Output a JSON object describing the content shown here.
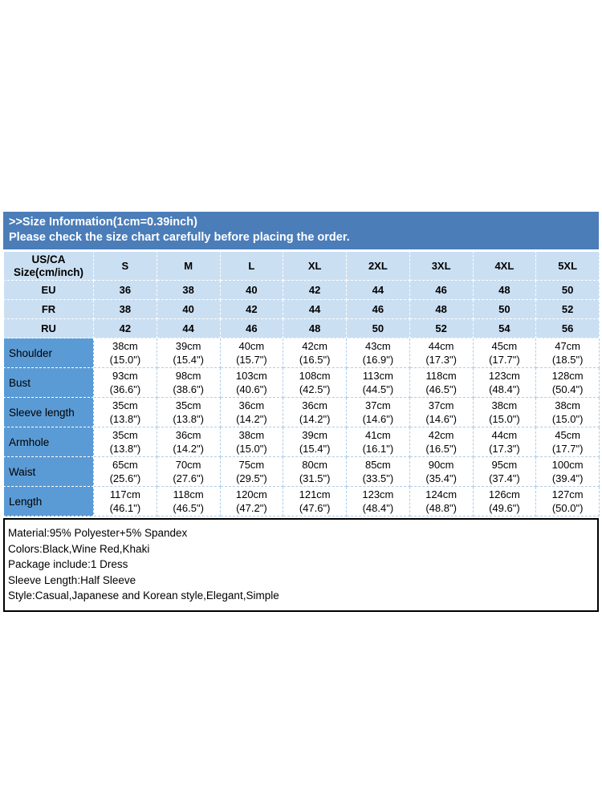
{
  "banner": {
    "title": ">>Size Information(1cm=0.39inch)",
    "subtitle": "Please check the size chart carefully before placing the order."
  },
  "table": {
    "corner_header": "US/CA\nSize(cm/inch)",
    "columns": [
      "S",
      "M",
      "L",
      "XL",
      "2XL",
      "3XL",
      "4XL",
      "5XL"
    ],
    "size_rows": [
      {
        "label": "EU",
        "values": [
          "36",
          "38",
          "40",
          "42",
          "44",
          "46",
          "48",
          "50"
        ]
      },
      {
        "label": "FR",
        "values": [
          "38",
          "40",
          "42",
          "44",
          "46",
          "48",
          "50",
          "52"
        ]
      },
      {
        "label": "RU",
        "values": [
          "42",
          "44",
          "46",
          "48",
          "50",
          "52",
          "54",
          "56"
        ]
      }
    ],
    "measure_rows": [
      {
        "label": "Shoulder",
        "values": [
          "38cm\n(15.0\")",
          "39cm\n(15.4\")",
          "40cm\n(15.7\")",
          "42cm\n(16.5\")",
          "43cm\n(16.9\")",
          "44cm\n(17.3\")",
          "45cm\n(17.7\")",
          "47cm\n(18.5\")"
        ]
      },
      {
        "label": "Bust",
        "values": [
          "93cm\n(36.6\")",
          "98cm\n(38.6\")",
          "103cm\n(40.6\")",
          "108cm\n(42.5\")",
          "113cm\n(44.5\")",
          "118cm\n(46.5\")",
          "123cm\n(48.4\")",
          "128cm\n(50.4\")"
        ]
      },
      {
        "label": "Sleeve length",
        "values": [
          "35cm\n(13.8\")",
          "35cm\n(13.8\")",
          "36cm\n(14.2\")",
          "36cm\n(14.2\")",
          "37cm\n(14.6\")",
          "37cm\n(14.6\")",
          "38cm\n(15.0\")",
          "38cm\n(15.0\")"
        ]
      },
      {
        "label": "Armhole",
        "values": [
          "35cm\n(13.8\")",
          "36cm\n(14.2\")",
          "38cm\n(15.0\")",
          "39cm\n(15.4\")",
          "41cm\n(16.1\")",
          "42cm\n(16.5\")",
          "44cm\n(17.3\")",
          "45cm\n(17.7\")"
        ]
      },
      {
        "label": "Waist",
        "values": [
          "65cm\n(25.6\")",
          "70cm\n(27.6\")",
          "75cm\n(29.5\")",
          "80cm\n(31.5\")",
          "85cm\n(33.5\")",
          "90cm\n(35.4\")",
          "95cm\n(37.4\")",
          "100cm\n(39.4\")"
        ]
      },
      {
        "label": "Length",
        "values": [
          "117cm\n(46.1\")",
          "118cm\n(46.5\")",
          "120cm\n(47.2\")",
          "121cm\n(47.6\")",
          "123cm\n(48.4\")",
          "124cm\n(48.8\")",
          "126cm\n(49.6\")",
          "127cm\n(50.0\")"
        ]
      }
    ]
  },
  "info": {
    "lines": [
      "Material:95% Polyester+5% Spandex",
      "Colors:Black,Wine Red,Khaki",
      "Package include:1 Dress",
      "Sleeve Length:Half Sleeve",
      "Style:Casual,Japanese and Korean style,Elegant,Simple"
    ]
  },
  "colors": {
    "banner_blue": "#4b7db9",
    "light_blue_cell": "#cbdff2",
    "label_blue_cell": "#5b9bd5",
    "white_cell_border": "#aecde8",
    "info_box_border": "#000000"
  }
}
